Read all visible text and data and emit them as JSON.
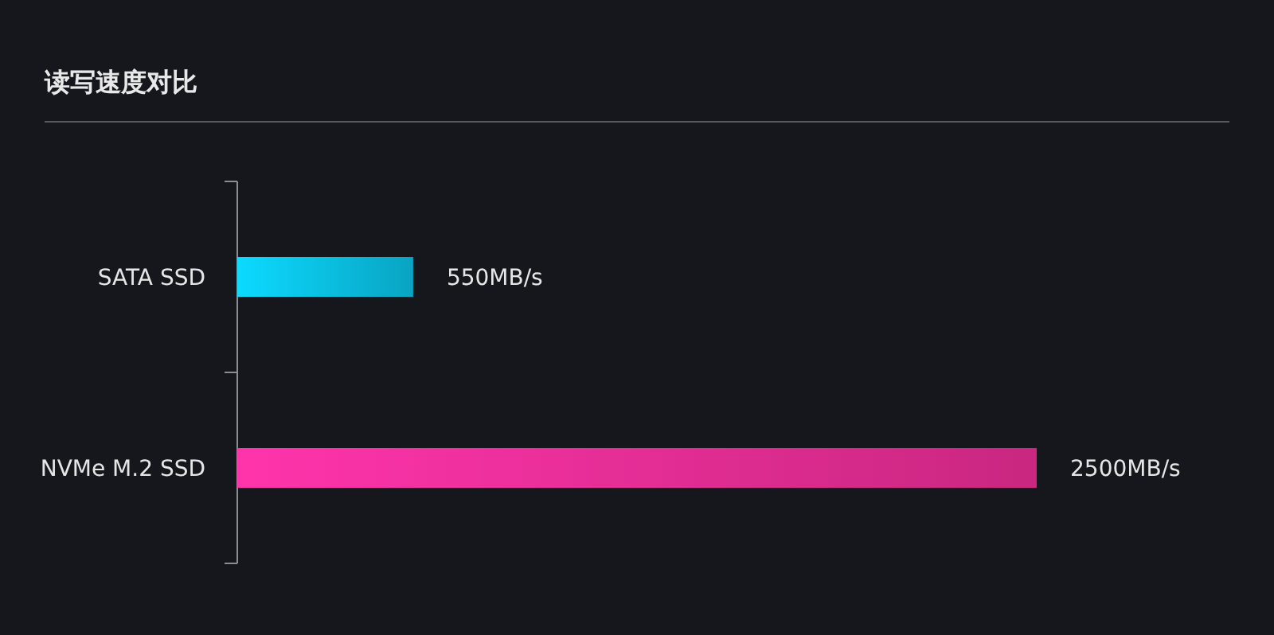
{
  "chart_data": {
    "type": "bar",
    "orientation": "horizontal",
    "title": "读写速度对比",
    "categories": [
      "SATA SSD",
      "NVMe M.2 SSD"
    ],
    "values": [
      550,
      2500
    ],
    "colors": [
      "#0ab0d0",
      "#d82a8a"
    ],
    "value_labels": [
      "550MB/s",
      "2500MB/s"
    ]
  }
}
